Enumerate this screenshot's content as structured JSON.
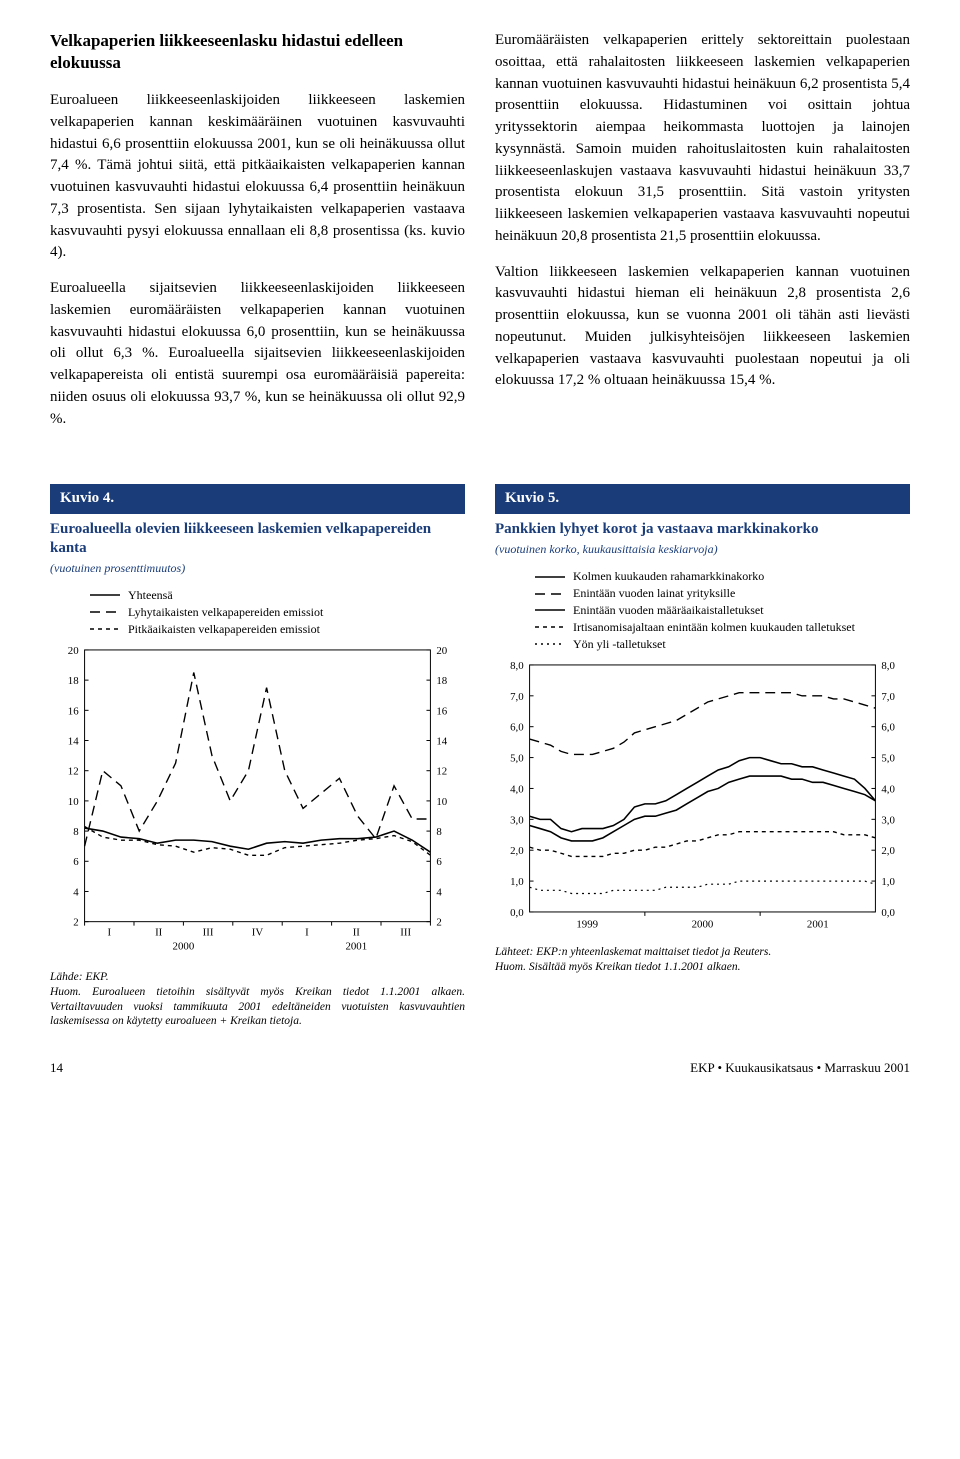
{
  "leftCol": {
    "heading": "Velkapaperien liikkeeseenlasku hidastui edelleen elokuussa",
    "p1": "Euroalueen liikkeeseenlaskijoiden liikkeeseen laskemien velkapaperien kannan keskimääräinen vuotuinen kasvuvauhti hidastui 6,6 prosenttiin elokuussa 2001, kun se oli heinäkuussa ollut 7,4 %. Tämä johtui siitä, että pitkäaikaisten velkapaperien kannan vuotuinen kasvuvauhti hidastui elokuussa 6,4 prosenttiin heinäkuun 7,3 prosentista. Sen sijaan lyhytaikaisten velkapaperien vastaava kasvuvauhti pysyi elokuussa ennallaan eli 8,8 prosentissa (ks. kuvio 4).",
    "p2": "Euroalueella sijaitsevien liikkeeseenlaskijoiden liikkeeseen laskemien euromääräisten velkapaperien kannan vuotuinen kasvuvauhti hidastui elokuussa 6,0 prosenttiin, kun se heinäkuussa oli ollut 6,3 %. Euroalueella sijaitsevien liikkeeseenlaskijoiden velkapapereista oli entistä suurempi osa euromääräisiä papereita: niiden osuus oli elokuussa 93,7 %, kun se heinäkuussa oli ollut 92,9 %."
  },
  "rightCol": {
    "p1": "Euromääräisten velkapaperien erittely sektoreittain puolestaan osoittaa, että rahalaitosten liikkeeseen laskemien velkapaperien kannan vuotuinen kasvuvauhti hidastui heinäkuun 6,2 prosentista 5,4 prosenttiin elokuussa. Hidastuminen voi osittain johtua yrityssektorin aiempaa heikommasta luottojen ja lainojen kysynnästä. Samoin muiden rahoituslaitosten kuin rahalaitosten liikkeeseenlaskujen vastaava kasvuvauhti hidastui heinäkuun 33,7 prosentista elokuun 31,5 prosenttiin. Sitä vastoin yritysten liikkeeseen laskemien velkapaperien vastaava kasvuvauhti nopeutui heinäkuun 20,8 prosentista 21,5 prosenttiin elokuussa.",
    "p2": "Valtion liikkeeseen laskemien velkapaperien kannan vuotuinen kasvuvauhti hidastui hieman eli heinäkuun 2,8 prosentista 2,6 prosenttiin elokuussa, kun se vuonna 2001 oli tähän asti lievästi nopeutunut. Muiden julkisyhteisöjen liikkeeseen laskemien velkapaperien vastaava kasvuvauhti puolestaan nopeutui ja oli elokuussa 17,2 % oltuaan heinäkuussa 15,4 %."
  },
  "chart4": {
    "header": "Kuvio 4.",
    "title": "Euroalueella olevien liikkeeseen laskemien velkapapereiden kanta",
    "subtitle": "(vuotuinen prosenttimuutos)",
    "type": "line",
    "legend": [
      {
        "label": "Yhteensä",
        "dash": "solid"
      },
      {
        "label": "Lyhytaikaisten velkapapereiden emissiot",
        "dash": "longdash"
      },
      {
        "label": "Pitkäaikaisten velkapapereiden emissiot",
        "dash": "shortdash"
      }
    ],
    "ylim": [
      2,
      20
    ],
    "ytick_step": 2,
    "x_labels_top": [
      "I",
      "II",
      "III",
      "IV",
      "I",
      "II",
      "III"
    ],
    "x_labels_bottom": [
      "2000",
      "2001"
    ],
    "line_color": "#000000",
    "grid_color": "#d0d0d0",
    "background_color": "#ffffff",
    "series": {
      "total": [
        8.2,
        8.0,
        7.6,
        7.5,
        7.2,
        7.4,
        7.4,
        7.3,
        7.0,
        6.8,
        7.2,
        7.3,
        7.2,
        7.4,
        7.5,
        7.5,
        7.6,
        8.0,
        7.4,
        6.6
      ],
      "short": [
        7.0,
        12.0,
        11.0,
        8.0,
        10.0,
        12.5,
        18.5,
        13.0,
        10.0,
        12.0,
        17.5,
        12.0,
        9.5,
        10.5,
        11.5,
        9.0,
        7.5,
        11.0,
        8.8,
        8.8
      ],
      "long": [
        8.3,
        7.6,
        7.4,
        7.4,
        7.1,
        7.0,
        6.6,
        6.9,
        6.8,
        6.4,
        6.4,
        6.9,
        7.0,
        7.1,
        7.2,
        7.4,
        7.5,
        7.7,
        7.3,
        6.4
      ]
    },
    "note_lines": [
      "Lähde: EKP.",
      "Huom. Euroalueen tietoihin sisältyvät myös Kreikan tiedot 1.1.2001 alkaen. Vertailtavuuden vuoksi tammikuuta 2001 edeltäneiden vuotuisten kasvuvauhtien laskemisessa on käytetty euroalueen + Kreikan tietoja."
    ]
  },
  "chart5": {
    "header": "Kuvio 5.",
    "title": "Pankkien lyhyet korot ja vastaava markkinakorko",
    "subtitle": "(vuotuinen korko, kuukausittaisia keskiarvoja)",
    "type": "line",
    "legend": [
      {
        "label": "Kolmen kuukauden rahamarkkinakorko",
        "dash": "solid"
      },
      {
        "label": "Enintään vuoden lainat yrityksille",
        "dash": "longdash"
      },
      {
        "label": "Enintään vuoden määräaikaistalletukset",
        "dash": "solid"
      },
      {
        "label": "Irtisanomisajaltaan enintään kolmen kuukauden talletukset",
        "dash": "shortdash"
      },
      {
        "label": "Yön yli -talletukset",
        "dash": "dotted"
      }
    ],
    "ylim": [
      0,
      8
    ],
    "ytick_step": 1,
    "x_labels": [
      "1999",
      "2000",
      "2001"
    ],
    "line_color": "#000000",
    "grid_color": "#d0d0d0",
    "background_color": "#ffffff",
    "series": {
      "mm3": [
        3.1,
        3.0,
        3.0,
        2.7,
        2.6,
        2.7,
        2.7,
        2.7,
        2.8,
        3.0,
        3.4,
        3.5,
        3.5,
        3.6,
        3.8,
        4.0,
        4.2,
        4.4,
        4.6,
        4.7,
        4.9,
        5.0,
        5.0,
        4.9,
        4.8,
        4.8,
        4.7,
        4.7,
        4.6,
        4.5,
        4.4,
        4.3,
        4.0,
        3.6
      ],
      "loan": [
        5.6,
        5.5,
        5.4,
        5.2,
        5.1,
        5.1,
        5.1,
        5.2,
        5.3,
        5.5,
        5.8,
        5.9,
        6.0,
        6.1,
        6.2,
        6.4,
        6.6,
        6.8,
        6.9,
        7.0,
        7.1,
        7.1,
        7.1,
        7.1,
        7.1,
        7.1,
        7.0,
        7.0,
        7.0,
        6.9,
        6.9,
        6.8,
        6.7,
        6.6
      ],
      "term": [
        2.8,
        2.7,
        2.6,
        2.4,
        2.3,
        2.3,
        2.3,
        2.4,
        2.6,
        2.8,
        3.0,
        3.1,
        3.1,
        3.2,
        3.3,
        3.5,
        3.7,
        3.9,
        4.0,
        4.2,
        4.3,
        4.4,
        4.4,
        4.4,
        4.4,
        4.3,
        4.3,
        4.2,
        4.2,
        4.1,
        4.0,
        3.9,
        3.8,
        3.6
      ],
      "notice": [
        2.1,
        2.0,
        2.0,
        1.9,
        1.8,
        1.8,
        1.8,
        1.8,
        1.9,
        1.9,
        2.0,
        2.0,
        2.1,
        2.1,
        2.2,
        2.3,
        2.3,
        2.4,
        2.5,
        2.5,
        2.6,
        2.6,
        2.6,
        2.6,
        2.6,
        2.6,
        2.6,
        2.6,
        2.6,
        2.6,
        2.5,
        2.5,
        2.5,
        2.4
      ],
      "overn": [
        0.8,
        0.7,
        0.7,
        0.7,
        0.6,
        0.6,
        0.6,
        0.6,
        0.7,
        0.7,
        0.7,
        0.7,
        0.7,
        0.8,
        0.8,
        0.8,
        0.8,
        0.9,
        0.9,
        0.9,
        1.0,
        1.0,
        1.0,
        1.0,
        1.0,
        1.0,
        1.0,
        1.0,
        1.0,
        1.0,
        1.0,
        1.0,
        1.0,
        0.9
      ]
    },
    "note_lines": [
      "Lähteet: EKP:n yhteenlaskemat maittaiset tiedot ja Reuters.",
      "Huom. Sisältää myös Kreikan tiedot 1.1.2001 alkaen."
    ]
  },
  "footer": {
    "page": "14",
    "right": "EKP • Kuukausikatsaus • Marraskuu 2001"
  }
}
